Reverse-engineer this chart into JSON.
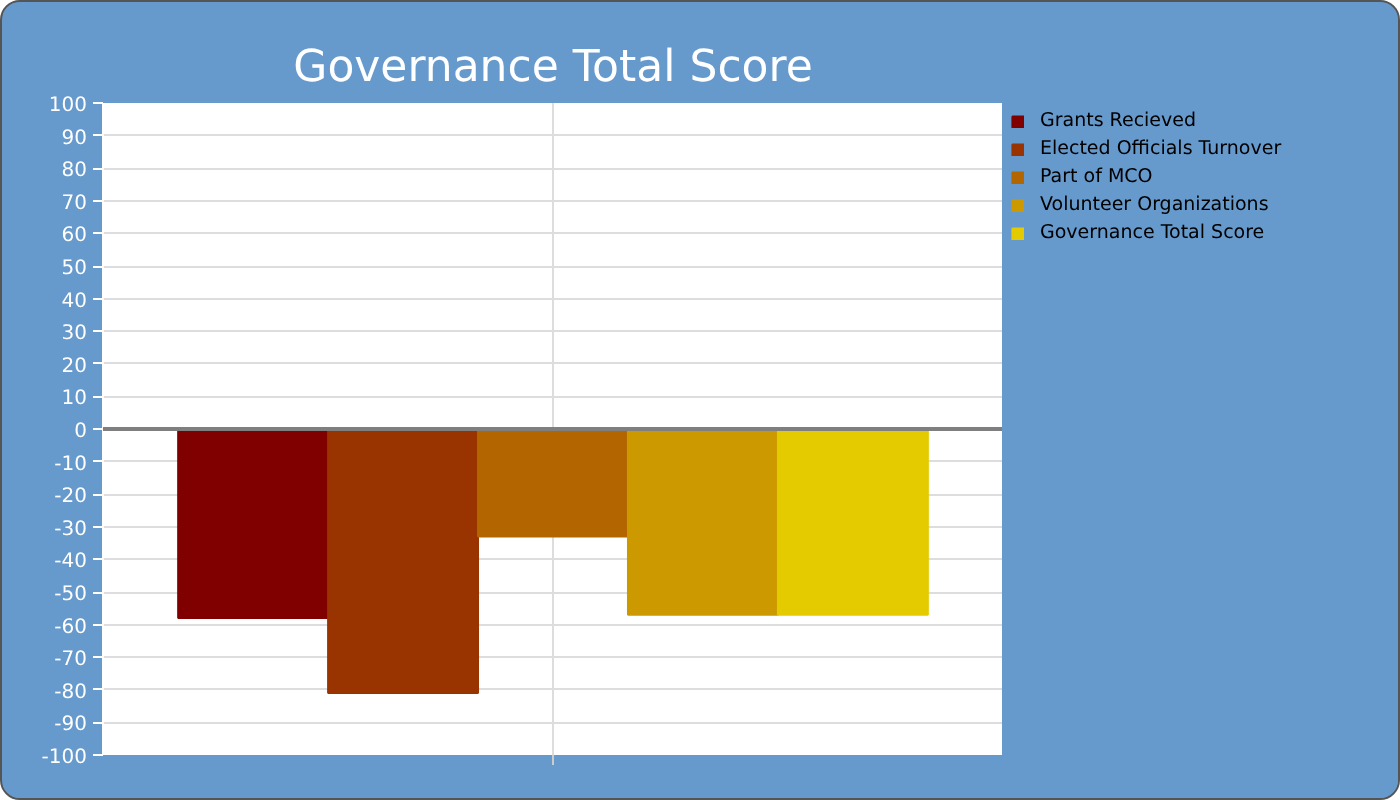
{
  "chart_data": {
    "type": "bar",
    "title": "Governance Total Score",
    "categories": [
      null
    ],
    "series": [
      {
        "name": "Grants Recieved",
        "color": "#800000",
        "values": [
          -58
        ]
      },
      {
        "name": "Elected Officials Turnover",
        "color": "#993300",
        "values": [
          -81
        ]
      },
      {
        "name": "Part of MCO",
        "color": "#b36600",
        "values": [
          -33
        ]
      },
      {
        "name": "Volunteer Organizations",
        "color": "#cc9900",
        "values": [
          -57
        ]
      },
      {
        "name": "Governance Total Score",
        "color": "#e3cb00",
        "values": [
          -57
        ]
      }
    ],
    "ylim": [
      -100,
      100
    ],
    "yticks": [
      -100,
      -90,
      -80,
      -70,
      -60,
      -50,
      -40,
      -30,
      -20,
      -10,
      0,
      10,
      20,
      30,
      40,
      50,
      60,
      70,
      80,
      90,
      100
    ],
    "grid": true,
    "legend": "right",
    "tick_labels": "y",
    "ref_lines": [
      {
        "axis": "y",
        "value": 0,
        "color": "#7f7f7f"
      }
    ]
  }
}
